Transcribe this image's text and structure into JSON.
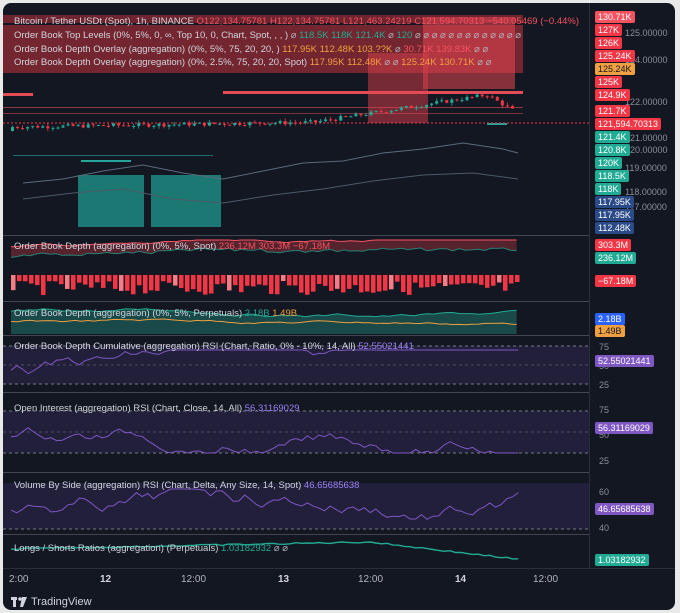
{
  "main": {
    "symbol": "Bitcoin / Tether USDt (Spot), 1h, BINANCE",
    "ohlc": {
      "o": "O122,134.75781",
      "h": "H122,134.75781",
      "l": "L121,463.24219",
      "c": "C121,594.70313",
      "chg": "−540.05469 (−0.44%)"
    },
    "ind1": {
      "name": "Order Book Top Levels (0%, 5%, 0, ∞, Top 10, 0, Chart, Spot, , , )",
      "v1": "⌀",
      "v2": "118.5K",
      "v3": "118K",
      "v4": "121.4K",
      "v5": "⌀",
      "v6": "120",
      "v7": "⌀ ⌀ ⌀ ⌀ ⌀ ⌀ ⌀ ⌀ ⌀ ⌀ ⌀ ⌀ ⌀"
    },
    "ind2": {
      "name": "Order Book Depth Overlay (aggregation) (0%, 5%, 75, 20, 20, )",
      "v1": "117.95K",
      "v2": "112.48K",
      "v3": "103.??K",
      "v4": "⌀",
      "v5": "30.71K",
      "v6": "139.83K",
      "v7": "⌀ ⌀"
    },
    "ind3": {
      "name": "Order Book Depth Overlay (aggregation) (0%, 2.5%, 75, 20, 20, Spot)",
      "v1": "117.95K",
      "v2": "112.48K",
      "v3": "⌀ ⌀",
      "v4": "125.24K",
      "v5": "130.71K",
      "v6": "⌀ ⌀"
    }
  },
  "price_scale": {
    "ticks": [
      "125.00000",
      "124.00000",
      "122.00000",
      "121.00000",
      "120.00000",
      "119.00000",
      "118.00000",
      "117.00000"
    ],
    "tags_red": [
      "130.71K",
      "127K",
      "126K",
      "125.24K",
      "125K",
      "124.9K",
      "121.7K"
    ],
    "tag_orange": "125.24K",
    "current_price": "121,594.70313",
    "tags_green": [
      "121.4K",
      "120.8K",
      "120K",
      "118.5K",
      "118K"
    ],
    "tags_blue": [
      "117.95K",
      "117.95K",
      "112.48K"
    ]
  },
  "p2": {
    "title": "Order Book Depth (aggregation) (0%, 5%, Spot)",
    "v1": "236.12M",
    "v2": "303.3M",
    "v3": "−67.18M",
    "tags": [
      "303.3M",
      "236.12M",
      "−67.18M"
    ]
  },
  "p3": {
    "title": "Order Book Depth (aggregation) (0%, 5%, Perpetuals)",
    "v1": "2.18B",
    "v2": "1.49B",
    "tags": [
      "2.18B",
      "1.49B"
    ]
  },
  "p4": {
    "title": "Order Book Depth Cumulative (aggregation) RSI (Chart, Ratio, 0% - 10%, 14, All)",
    "value": "52.55021441",
    "ticks": [
      "75",
      "50",
      "25"
    ],
    "tag": "52.55021441"
  },
  "p5": {
    "title": "Open Interest (aggregation) RSI (Chart, Close, 14, All)",
    "value": "56.31169029",
    "ticks": [
      "75",
      "50",
      "25"
    ],
    "tag": "56.31169029"
  },
  "p6": {
    "title": "Volume By Side (aggregation) RSI (Chart, Delta, Any Size, 14, Spot)",
    "value": "46.65685638",
    "ticks": [
      "60",
      "40"
    ],
    "tag": "46.65685638"
  },
  "p7": {
    "title": "Longs / Shorts Ratios (aggregation) (Perpetuals)",
    "value": "1.03182932",
    "na": "⌀ ⌀",
    "tag": "1.03182932"
  },
  "time_axis": [
    "2:00",
    "12",
    "12:00",
    "13",
    "12:00",
    "14",
    "12:00"
  ],
  "brand": "TradingView",
  "colors": {
    "red": "#f23645",
    "green": "#22ab94",
    "purple": "#7e57c2",
    "orange": "#f0a040",
    "bg": "#131722"
  }
}
